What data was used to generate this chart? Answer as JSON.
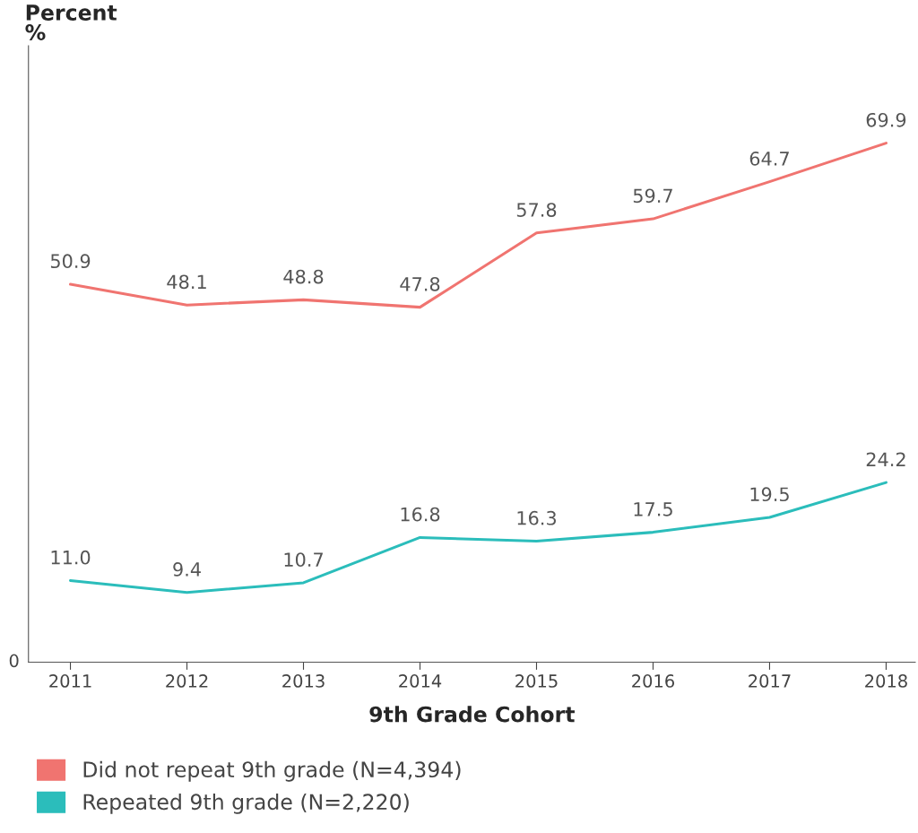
{
  "chart_data": {
    "type": "line",
    "ylabel": "Percent\n%",
    "xlabel": "9th Grade Cohort",
    "categories": [
      "2011",
      "2012",
      "2013",
      "2014",
      "2015",
      "2016",
      "2017",
      "2018"
    ],
    "series": [
      {
        "name": "Did not repeat 9th grade (N=4,394)",
        "color": "#f07470",
        "values": [
          50.9,
          48.1,
          48.8,
          47.8,
          57.8,
          59.7,
          64.7,
          69.9
        ],
        "value_labels": [
          "50.9",
          "48.1",
          "48.8",
          "47.8",
          "57.8",
          "59.7",
          "64.7",
          "69.9"
        ]
      },
      {
        "name": "Repeated 9th grade (N=2,220)",
        "color": "#2bbdbb",
        "values": [
          11.0,
          9.4,
          10.7,
          16.8,
          16.3,
          17.5,
          19.5,
          24.2
        ],
        "value_labels": [
          "11.0",
          "9.4",
          "10.7",
          "16.8",
          "16.3",
          "17.5",
          "19.5",
          "24.2"
        ]
      }
    ],
    "ylim": [
      0,
      83
    ],
    "annotations": [
      "0"
    ],
    "grid": false,
    "legend": "bottom",
    "marker": "none",
    "line_style": "solid"
  }
}
